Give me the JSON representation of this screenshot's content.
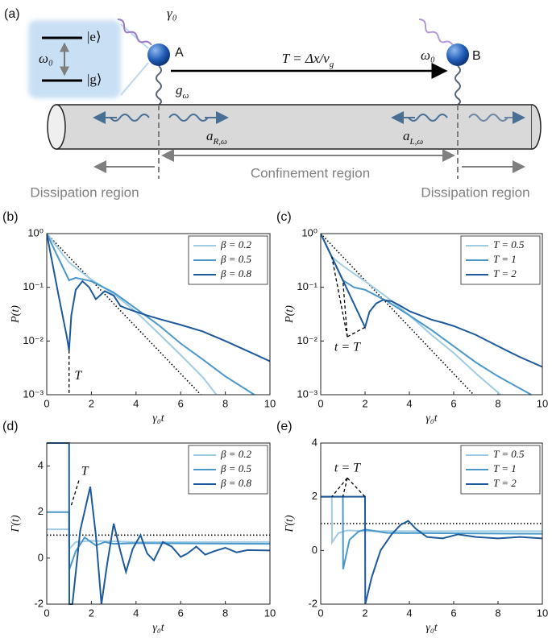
{
  "diagram": {
    "label": "(a)",
    "level_e": "|e⟩",
    "level_g": "|g⟩",
    "omega_left": "ω₀",
    "gamma": "γ₀",
    "atom_a": "A",
    "atom_b": "B",
    "omega_right": "ω₀",
    "delay": {
      "text": "T = Δx/v",
      "sub": "g"
    },
    "coupling": {
      "text": "g",
      "sub": "ω"
    },
    "mode_right": {
      "text": "a",
      "sub": "R,ω"
    },
    "mode_left": {
      "text": "a",
      "sub": "L,ω"
    },
    "confinement": "Confinement region",
    "dissipation_left": "Dissipation region",
    "dissipation_right": "Dissipation region"
  },
  "chart_data": [
    {
      "type": "line",
      "label": "(b)",
      "x_label": "γ₀t",
      "y_label": "P(t)",
      "log_y": true,
      "legend": "upper right",
      "xlim": [
        0,
        10
      ],
      "xticks": [
        0,
        2,
        4,
        6,
        8,
        10
      ],
      "ylim": [
        0.001,
        1
      ],
      "yticks": [
        {
          "value": 0.001,
          "label": "10⁻³"
        },
        {
          "value": 0.01,
          "label": "10⁻²"
        },
        {
          "value": 0.1,
          "label": "10⁻¹"
        },
        {
          "value": 1,
          "label": "10⁰"
        }
      ],
      "series": [
        {
          "name": "β = 0.2",
          "color": "#9fcbe3",
          "x": [
            0,
            1,
            1.5,
            2,
            3,
            4,
            5,
            6,
            7,
            7.6
          ],
          "values": [
            1,
            0.29,
            0.2,
            0.14,
            0.075,
            0.035,
            0.014,
            0.0055,
            0.0021,
            0.001
          ]
        },
        {
          "name": "β = 0.5",
          "color": "#4a98c9",
          "x": [
            0,
            1,
            1.3,
            2,
            3,
            4,
            5,
            6,
            7,
            8,
            9.3
          ],
          "values": [
            1,
            0.135,
            0.15,
            0.13,
            0.08,
            0.04,
            0.02,
            0.009,
            0.0045,
            0.0022,
            0.001
          ]
        },
        {
          "name": "β = 0.8",
          "color": "#1d5a9c",
          "x": [
            0,
            0.5,
            0.9,
            1,
            1.1,
            1.3,
            1.6,
            1.9,
            2.2,
            2.6,
            3,
            3.3,
            3.6,
            4,
            4.5,
            5,
            6,
            7,
            8,
            9,
            10
          ],
          "values": [
            1,
            0.082,
            0.012,
            0.0067,
            0.03,
            0.09,
            0.13,
            0.1,
            0.06,
            0.085,
            0.07,
            0.045,
            0.04,
            0.035,
            0.03,
            0.026,
            0.02,
            0.015,
            0.01,
            0.0065,
            0.0042
          ]
        }
      ],
      "reference": {
        "color": "#000000",
        "x": [
          0,
          6.9
        ],
        "values": [
          1,
          0.001
        ]
      },
      "annotations": [
        {
          "text": "T",
          "x": 1.4,
          "y": 0.0022,
          "line_x": [
            1,
            1
          ],
          "line_y": [
            0.0067,
            0.001
          ]
        }
      ]
    },
    {
      "type": "line",
      "label": "(c)",
      "x_label": "γ₀t",
      "y_label": "P(t)",
      "log_y": true,
      "legend": "upper right",
      "xlim": [
        0,
        10
      ],
      "xticks": [
        0,
        2,
        4,
        6,
        8,
        10
      ],
      "ylim": [
        0.001,
        1
      ],
      "yticks": [
        {
          "value": 0.001,
          "label": "10⁻³"
        },
        {
          "value": 0.01,
          "label": "10⁻²"
        },
        {
          "value": 0.1,
          "label": "10⁻¹"
        },
        {
          "value": 1,
          "label": "10⁰"
        }
      ],
      "series": [
        {
          "name": "T = 0.5",
          "color": "#9fcbe3",
          "x": [
            0,
            0.5,
            1,
            2,
            3,
            4,
            5,
            6,
            7,
            8,
            8.1
          ],
          "values": [
            1,
            0.37,
            0.25,
            0.13,
            0.065,
            0.03,
            0.013,
            0.006,
            0.0025,
            0.0011,
            0.001
          ]
        },
        {
          "name": "T = 1",
          "color": "#4a98c9",
          "x": [
            0,
            1,
            1.5,
            2,
            3,
            4,
            5,
            6,
            7,
            8,
            9,
            9.5
          ],
          "values": [
            1,
            0.135,
            0.1,
            0.09,
            0.055,
            0.03,
            0.016,
            0.008,
            0.004,
            0.0022,
            0.0013,
            0.001
          ]
        },
        {
          "name": "T = 2",
          "color": "#1d5a9c",
          "x": [
            0,
            1,
            2,
            2.2,
            2.5,
            2.8,
            3.2,
            3.6,
            4,
            4.5,
            5,
            5.5,
            6,
            7,
            8,
            9,
            10
          ],
          "values": [
            1,
            0.135,
            0.018,
            0.035,
            0.05,
            0.058,
            0.055,
            0.045,
            0.036,
            0.03,
            0.025,
            0.022,
            0.019,
            0.013,
            0.008,
            0.005,
            0.0033
          ]
        }
      ],
      "reference": {
        "color": "#000000",
        "x": [
          0,
          6.9
        ],
        "values": [
          1,
          0.001
        ]
      },
      "annotations": [
        {
          "text": "t = T",
          "x": 1.2,
          "y": 0.0075,
          "line_x": [
            1.2,
            0.5,
            1.2,
            1,
            1.2,
            2
          ],
          "line_y": [
            0.012,
            0.37,
            0.012,
            0.135,
            0.012,
            0.018
          ]
        }
      ]
    },
    {
      "type": "line",
      "label": "(d)",
      "x_label": "γ₀t",
      "y_label": "Γ(t)",
      "log_y": false,
      "legend": "upper right",
      "xlim": [
        0,
        10
      ],
      "xticks": [
        0,
        2,
        4,
        6,
        8,
        10
      ],
      "ylim": [
        -2,
        5
      ],
      "yticks": [
        -2,
        0,
        2,
        4
      ],
      "series": [
        {
          "name": "β = 0.2",
          "color": "#9fcbe3",
          "x": [
            0,
            1,
            1.01,
            1.3,
            2,
            4,
            10
          ],
          "values": [
            1.25,
            1.25,
            0.4,
            0.7,
            0.75,
            0.7,
            0.7
          ]
        },
        {
          "name": "β = 0.5",
          "color": "#4a98c9",
          "x": [
            0,
            1,
            1.01,
            1.3,
            1.7,
            2.2,
            2.6,
            3,
            4,
            10
          ],
          "values": [
            2,
            2,
            -0.5,
            0.3,
            0.9,
            0.55,
            0.7,
            0.62,
            0.65,
            0.62
          ]
        },
        {
          "name": "β = 0.8",
          "color": "#1d5a9c",
          "x": [
            0,
            1,
            1.01,
            1.15,
            1.5,
            1.95,
            2.2,
            2.45,
            2.7,
            3,
            3.3,
            3.55,
            3.85,
            4.2,
            4.5,
            4.8,
            5.2,
            5.6,
            6,
            6.3,
            6.7,
            7.1,
            7.5,
            8,
            8.5,
            9,
            10
          ],
          "values": [
            5,
            5,
            -2,
            -2,
            1.2,
            3.1,
            1,
            -2,
            -0.3,
            1.5,
            0.3,
            -0.6,
            0.4,
            1,
            0.2,
            -0.1,
            0.7,
            0.5,
            0.05,
            0.2,
            0.5,
            0.15,
            0.3,
            0.45,
            0.25,
            0.35,
            0.33
          ]
        }
      ],
      "reference": {
        "color": "#000000",
        "x": [
          0,
          10
        ],
        "values": [
          1,
          1
        ]
      },
      "annotations": [
        {
          "text": "T",
          "x": 1.7,
          "y": 3.75,
          "line_x": [
            1.1,
            1.45
          ],
          "line_y": [
            2.3,
            3.4
          ]
        }
      ]
    },
    {
      "type": "line",
      "label": "(e)",
      "x_label": "γ₀t",
      "y_label": "Γ(t)",
      "log_y": false,
      "legend": "upper right",
      "xlim": [
        0,
        10
      ],
      "xticks": [
        0,
        2,
        4,
        6,
        8,
        10
      ],
      "ylim": [
        -2,
        4
      ],
      "yticks": [
        -2,
        0,
        2,
        4
      ],
      "series": [
        {
          "name": "T = 0.5",
          "color": "#9fcbe3",
          "x": [
            0,
            0.5,
            0.51,
            0.8,
            1.2,
            2,
            10
          ],
          "values": [
            2,
            2,
            0.3,
            0.65,
            0.75,
            0.72,
            0.72
          ]
        },
        {
          "name": "T = 1",
          "color": "#4a98c9",
          "x": [
            0,
            1,
            1.01,
            1.3,
            1.7,
            2,
            3,
            10
          ],
          "values": [
            2,
            2,
            -0.7,
            0.4,
            0.7,
            0.78,
            0.65,
            0.62
          ]
        },
        {
          "name": "T = 2",
          "color": "#1d5a9c",
          "x": [
            0,
            2,
            2.01,
            2.3,
            2.7,
            3.2,
            3.6,
            3.95,
            4.3,
            4.8,
            5.5,
            6.2,
            7,
            8,
            9,
            10
          ],
          "values": [
            2,
            2,
            -2,
            -1,
            0,
            0.6,
            0.95,
            1.1,
            0.8,
            0.5,
            0.45,
            0.6,
            0.5,
            0.45,
            0.5,
            0.45
          ]
        }
      ],
      "reference": {
        "color": "#000000",
        "x": [
          0,
          10
        ],
        "values": [
          1,
          1
        ]
      },
      "annotations": [
        {
          "text": "t = T",
          "x": 1.2,
          "y": 3.05,
          "line_x": [
            1.2,
            0.5,
            1.2,
            1,
            1.2,
            2
          ],
          "line_y": [
            2.7,
            2,
            2.7,
            2,
            2.7,
            2
          ]
        }
      ]
    }
  ]
}
